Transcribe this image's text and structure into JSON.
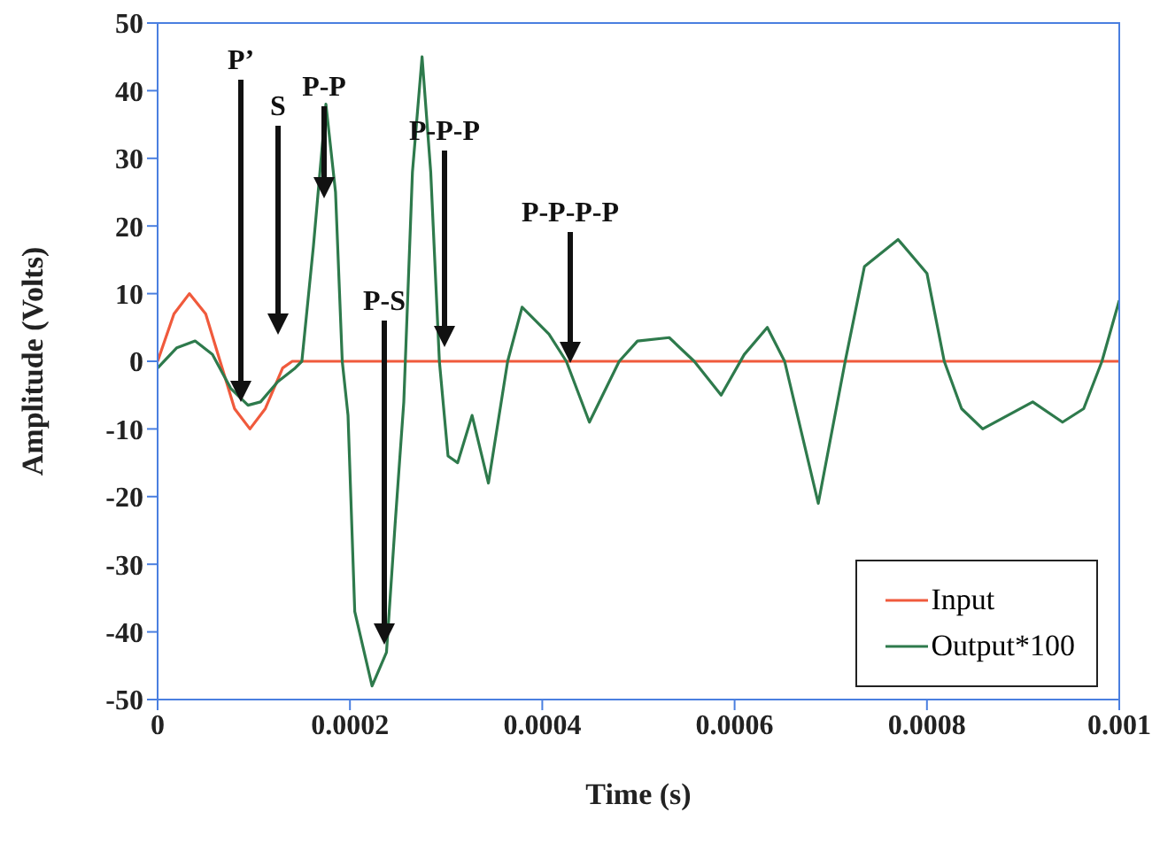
{
  "chart_data": {
    "type": "line",
    "xlabel": "Time (s)",
    "ylabel": "Amplitude (Volts)",
    "xlim": [
      0,
      0.001
    ],
    "xticks": [
      0,
      0.0002,
      0.0004,
      0.0006,
      0.0008,
      0.001
    ],
    "ylim": [
      -50,
      50
    ],
    "yticks": [
      -50,
      -40,
      -30,
      -20,
      -10,
      0,
      10,
      20,
      30,
      40,
      50
    ],
    "grid": false,
    "legend": "bottom right",
    "marker": "none",
    "line_style": "solid",
    "series": [
      {
        "name": "Input",
        "color": "#f05a3c",
        "x": [
          0,
          1.7e-05,
          3.3e-05,
          5e-05,
          6.5e-05,
          8e-05,
          9.6e-05,
          0.000112,
          0.00013,
          0.00014,
          0.001
        ],
        "values": [
          0,
          7,
          10,
          7,
          0,
          -7,
          -10,
          -7,
          -1,
          0,
          0
        ]
      },
      {
        "name": "Output*100",
        "color": "#2e7a4c",
        "x": [
          0,
          2e-05,
          3.9e-05,
          5.7e-05,
          7.6e-05,
          9.4e-05,
          0.000107,
          0.000125,
          0.000143,
          0.00015,
          0.000162,
          0.000175,
          0.000185,
          0.000192,
          0.000198,
          0.000205,
          0.000223,
          0.000238,
          0.000247,
          0.000256,
          0.000265,
          0.000275,
          0.000284,
          0.000293,
          0.000302,
          0.000312,
          0.000327,
          0.000344,
          0.000364,
          0.000379,
          0.000407,
          0.000425,
          0.000449,
          0.00048,
          0.000499,
          0.000532,
          0.000558,
          0.000586,
          0.00061,
          0.000634,
          0.000652,
          0.000687,
          0.000715,
          0.000735,
          0.00077,
          0.0008,
          0.000818,
          0.000836,
          0.000858,
          0.00091,
          0.000941,
          0.000963,
          0.000982,
          0.001
        ],
        "values": [
          -1,
          2,
          3,
          1,
          -4,
          -6.5,
          -6,
          -3,
          -1,
          0,
          17,
          38,
          25,
          0,
          -8,
          -37,
          -48,
          -43,
          -24,
          -6,
          28,
          45,
          28,
          0,
          -14,
          -15,
          -8,
          -18,
          0,
          8,
          4,
          0,
          -9,
          0,
          3,
          3.5,
          0,
          -5,
          1,
          5,
          0,
          -21,
          0,
          14,
          18,
          13,
          0,
          -7,
          -10,
          -6,
          -9,
          -7,
          0,
          9
        ]
      }
    ],
    "annotations": [
      "P’",
      "S",
      "P-P",
      "P-S",
      "P-P-P",
      "P-P-P-P"
    ]
  }
}
